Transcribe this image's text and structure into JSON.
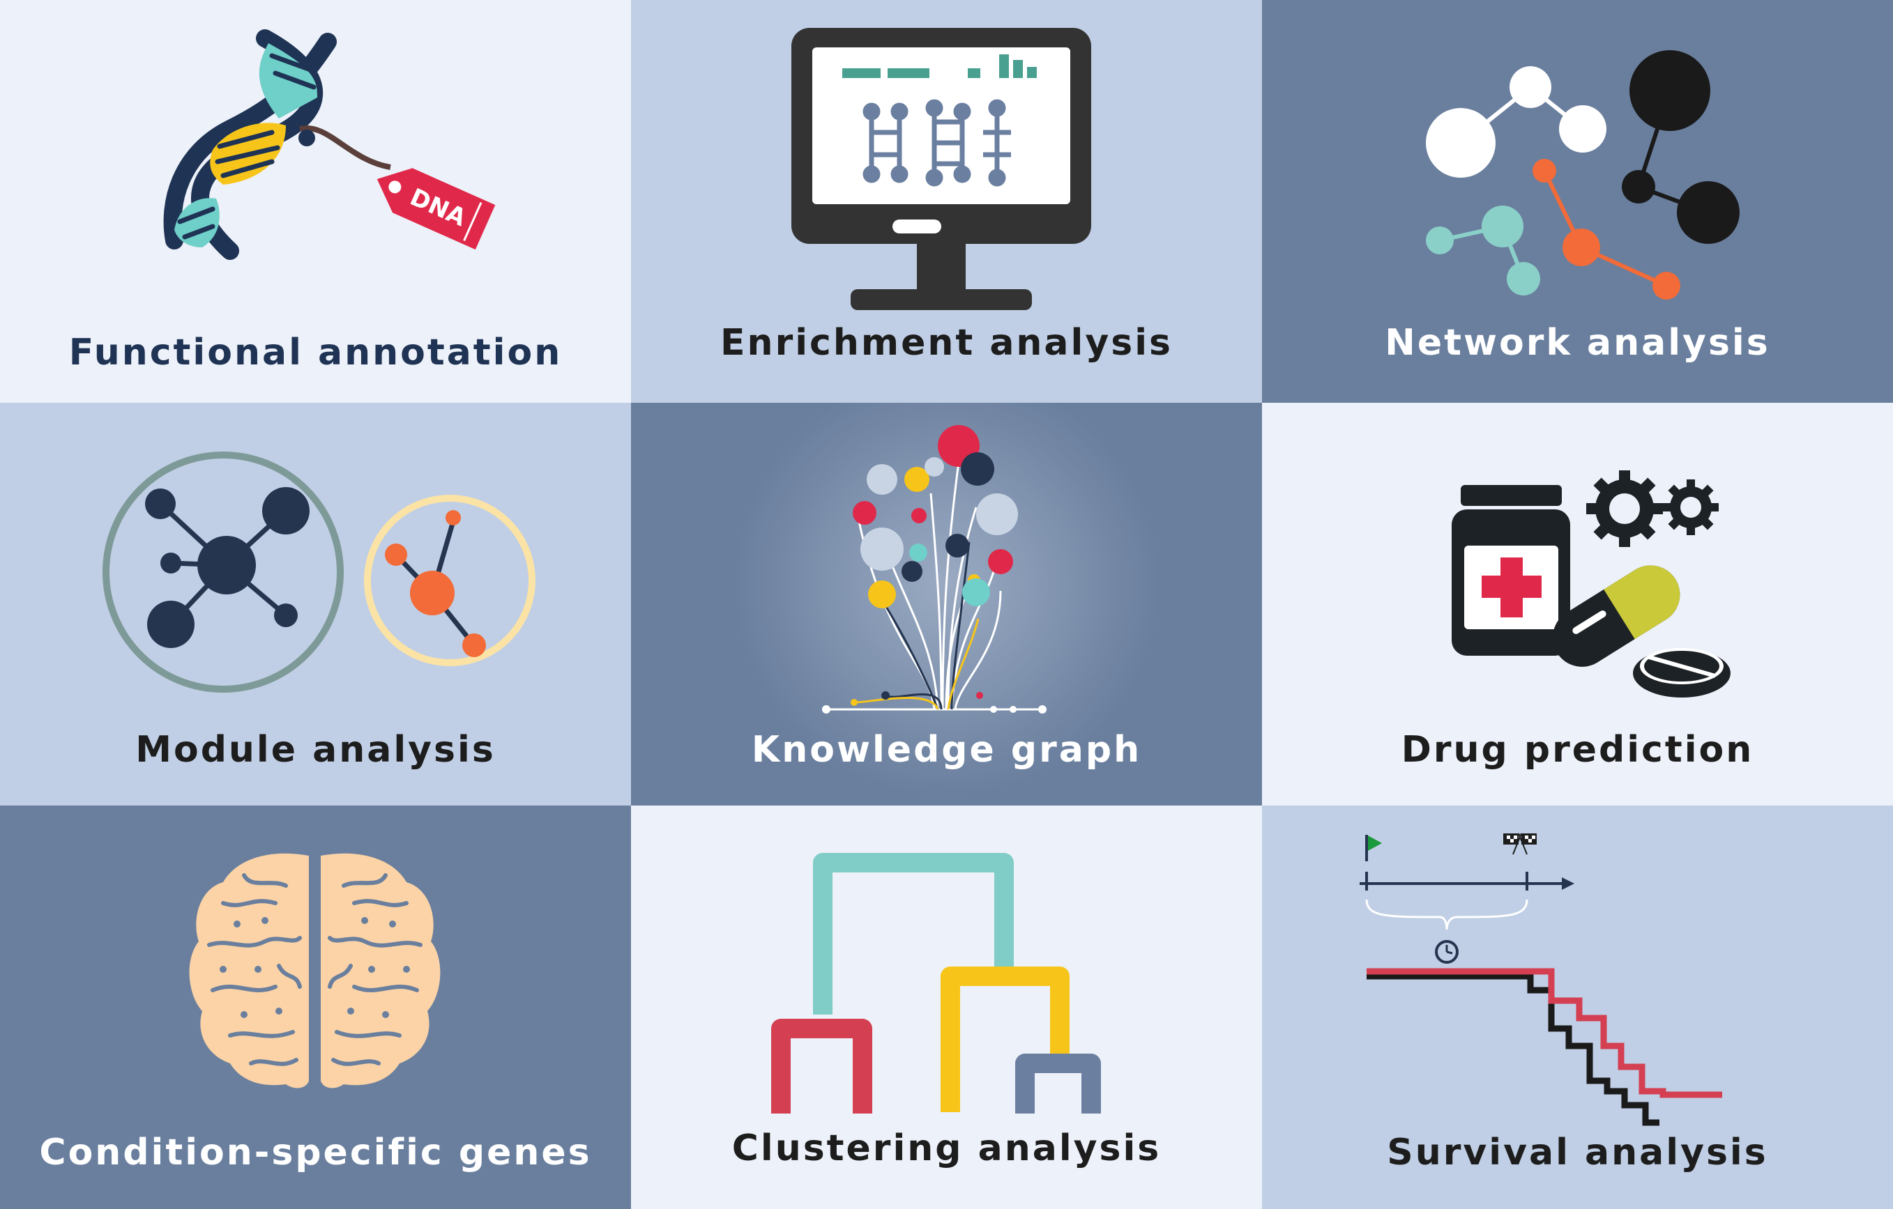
{
  "tiles": [
    {
      "label": "Functional annotation",
      "bg": "#edf1f9",
      "fg": "#1f3354"
    },
    {
      "label": "Enrichment analysis",
      "bg": "#c0cfe5",
      "fg": "#1d1d1d"
    },
    {
      "label": "Network analysis",
      "bg": "#6a7f9e",
      "fg": "#ffffff"
    },
    {
      "label": "Module analysis",
      "bg": "#c0cfe5",
      "fg": "#1d1d1d"
    },
    {
      "label": "Knowledge graph",
      "bg": "#6a7f9e",
      "fg": "#ffffff"
    },
    {
      "label": "Drug prediction",
      "bg": "#edf1f9",
      "fg": "#1d1d1d"
    },
    {
      "label": "Condition-specific genes",
      "bg": "#6a7f9e",
      "fg": "#ffffff"
    },
    {
      "label": "Clustering analysis",
      "bg": "#edf1f9",
      "fg": "#1d1d1d"
    },
    {
      "label": "Survival analysis",
      "bg": "#c0cfe5",
      "fg": "#1d1d1d"
    }
  ],
  "dna_tag_text": "DNA",
  "icons": [
    "dna-icon",
    "monitor-icon",
    "network-icon",
    "module-icon",
    "tree-icon",
    "medicine-icon",
    "brain-icon",
    "dendrogram-icon",
    "survival-curve-icon"
  ],
  "colors": {
    "red": "#e0294a",
    "teal": "#6fcfc9",
    "yellow": "#f7c51a",
    "orange": "#f26b38",
    "navy": "#253550",
    "dark": "#333333",
    "light_blue": "#c8d4e4"
  }
}
